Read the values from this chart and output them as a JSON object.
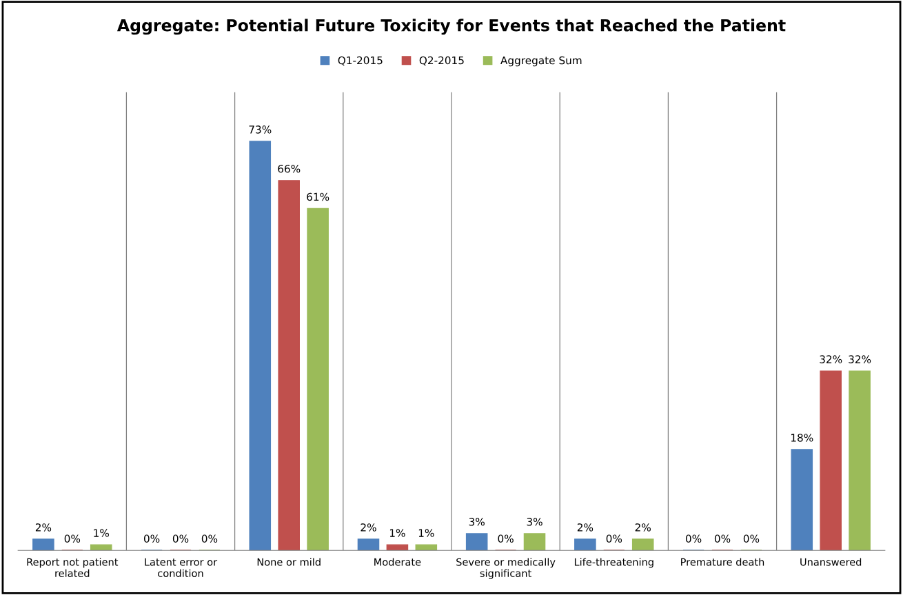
{
  "chart_data": {
    "type": "bar",
    "title": "Aggregate: Potential Future Toxicity for Events that Reached the Patient",
    "categories": [
      "Report not patient\nrelated",
      "Latent error or\ncondition",
      "None or mild",
      "Moderate",
      "Severe or medically\nsignificant",
      "Life-threatening",
      "Premature death",
      "Unanswered"
    ],
    "series": [
      {
        "name": "Q1-2015",
        "color": "#4f81bd",
        "values": [
          2,
          0,
          73,
          2,
          3,
          2,
          0,
          18
        ],
        "value_labels": [
          "2%",
          "0%",
          "73%",
          "2%",
          "3%",
          "2%",
          "0%",
          "18%"
        ]
      },
      {
        "name": "Q2-2015",
        "color": "#c0504d",
        "values": [
          0,
          0,
          66,
          1,
          0,
          0,
          0,
          32
        ],
        "value_labels": [
          "0%",
          "0%",
          "66%",
          "1%",
          "0%",
          "0%",
          "0%",
          "32%"
        ]
      },
      {
        "name": "Aggregate Sum",
        "color": "#9bbb59",
        "values": [
          1,
          0,
          61,
          1,
          3,
          2,
          0,
          32
        ],
        "value_labels": [
          "1%",
          "0%",
          "61%",
          "1%",
          "3%",
          "2%",
          "0%",
          "32%"
        ]
      }
    ],
    "grid": "x",
    "legend": "top"
  }
}
